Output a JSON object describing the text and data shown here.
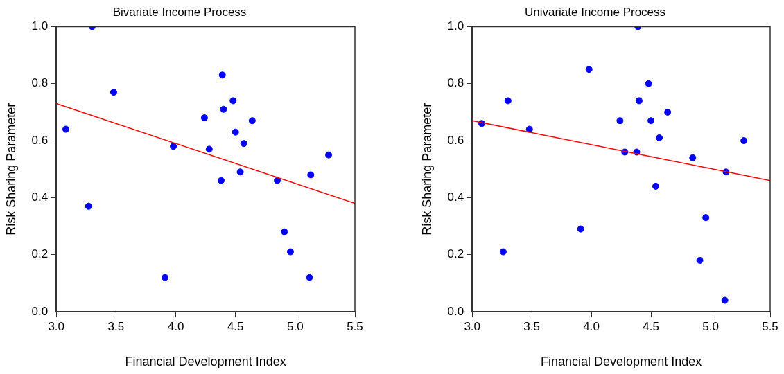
{
  "chart_data": [
    {
      "type": "scatter",
      "title": "Bivariate Income Process",
      "xlabel": "Financial Development Index",
      "ylabel": "Risk Sharing Parameter",
      "xlim": [
        3.0,
        5.5
      ],
      "xticks": [
        {
          "value": 3.0,
          "label": "3.0"
        },
        {
          "value": 3.5,
          "label": "3.5"
        },
        {
          "value": 4.0,
          "label": "4.0"
        },
        {
          "value": 4.5,
          "label": "4.5"
        },
        {
          "value": 5.0,
          "label": "5.0"
        },
        {
          "value": 5.5,
          "label": "5.5"
        }
      ],
      "ylim": [
        0.0,
        1.0
      ],
      "yticks": [
        {
          "value": 0.0,
          "label": "0.0"
        },
        {
          "value": 0.2,
          "label": "0.2"
        },
        {
          "value": 0.4,
          "label": "0.4"
        },
        {
          "value": 0.6,
          "label": "0.6"
        },
        {
          "value": 0.8,
          "label": "0.8"
        },
        {
          "value": 1.0,
          "label": "1.0"
        }
      ],
      "grid": false,
      "legend": false,
      "series": [
        {
          "marker": "circle",
          "color": "#0000ff",
          "x": [
            3.08,
            3.3,
            3.48,
            3.27,
            3.91,
            3.98,
            4.24,
            4.28,
            4.38,
            4.39,
            4.4,
            4.48,
            4.5,
            4.57,
            4.54,
            4.64,
            4.85,
            4.91,
            4.96,
            5.12,
            5.13,
            5.28
          ],
          "values": [
            0.64,
            1.0,
            0.77,
            0.37,
            0.12,
            0.58,
            0.68,
            0.57,
            0.46,
            0.83,
            0.71,
            0.74,
            0.63,
            0.59,
            0.49,
            0.67,
            0.46,
            0.28,
            0.21,
            0.12,
            0.48,
            0.55
          ]
        },
        {
          "type": "line",
          "marker": "none",
          "color": "#ff0000",
          "x": [
            3.0,
            5.5
          ],
          "values": [
            0.73,
            0.38
          ]
        }
      ]
    },
    {
      "type": "scatter",
      "title": "Univariate Income Process",
      "xlabel": "Financial Development Index",
      "ylabel": "Risk Sharing Parameter",
      "xlim": [
        3.0,
        5.5
      ],
      "xticks": [
        {
          "value": 3.0,
          "label": "3.0"
        },
        {
          "value": 3.5,
          "label": "3.5"
        },
        {
          "value": 4.0,
          "label": "4.0"
        },
        {
          "value": 4.5,
          "label": "4.5"
        },
        {
          "value": 5.0,
          "label": "5.0"
        },
        {
          "value": 5.5,
          "label": "5.5"
        }
      ],
      "ylim": [
        0.0,
        1.0
      ],
      "yticks": [
        {
          "value": 0.0,
          "label": "0.0"
        },
        {
          "value": 0.2,
          "label": "0.2"
        },
        {
          "value": 0.4,
          "label": "0.4"
        },
        {
          "value": 0.6,
          "label": "0.6"
        },
        {
          "value": 0.8,
          "label": "0.8"
        },
        {
          "value": 1.0,
          "label": "1.0"
        }
      ],
      "grid": false,
      "legend": false,
      "series": [
        {
          "marker": "circle",
          "color": "#0000ff",
          "x": [
            3.08,
            3.3,
            3.48,
            3.26,
            3.91,
            3.98,
            4.24,
            4.28,
            4.38,
            4.39,
            4.4,
            4.48,
            4.5,
            4.57,
            4.54,
            4.64,
            4.85,
            4.91,
            4.96,
            5.12,
            5.13,
            5.28
          ],
          "values": [
            0.66,
            0.74,
            0.64,
            0.21,
            0.29,
            0.85,
            0.67,
            0.56,
            0.56,
            1.0,
            0.74,
            0.8,
            0.67,
            0.61,
            0.44,
            0.7,
            0.54,
            0.18,
            0.33,
            0.04,
            0.49,
            0.6
          ]
        },
        {
          "type": "line",
          "marker": "none",
          "color": "#ff0000",
          "x": [
            3.0,
            5.5
          ],
          "values": [
            0.67,
            0.46
          ]
        }
      ]
    }
  ]
}
